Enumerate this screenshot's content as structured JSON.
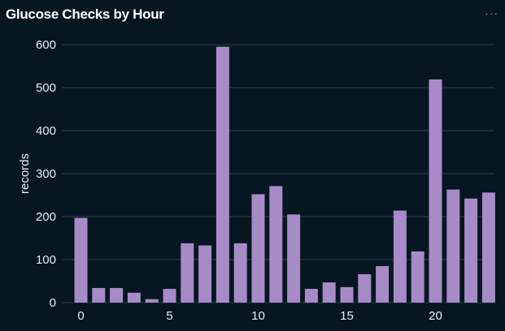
{
  "header": {
    "title": "Glucose Checks by Hour",
    "more_icon": "ellipsis-icon",
    "more_label": "···"
  },
  "colors": {
    "bar": "#a78bc7",
    "grid": "#2c3e4a",
    "background": "#071722"
  },
  "chart_data": {
    "type": "bar",
    "title": "Glucose Checks by Hour",
    "xlabel": "",
    "ylabel": "records",
    "categories": [
      0,
      1,
      2,
      3,
      4,
      5,
      6,
      7,
      8,
      9,
      10,
      11,
      12,
      13,
      14,
      15,
      16,
      17,
      18,
      19,
      20,
      21,
      22,
      23
    ],
    "values": [
      197,
      34,
      34,
      23,
      8,
      32,
      138,
      133,
      595,
      138,
      252,
      271,
      205,
      32,
      47,
      36,
      66,
      85,
      214,
      119,
      519,
      263,
      242,
      256
    ],
    "ylim": [
      0,
      600
    ],
    "yticks": [
      0,
      100,
      200,
      300,
      400,
      500,
      600
    ],
    "xticks": [
      0,
      5,
      10,
      15,
      20
    ],
    "grid": true
  }
}
